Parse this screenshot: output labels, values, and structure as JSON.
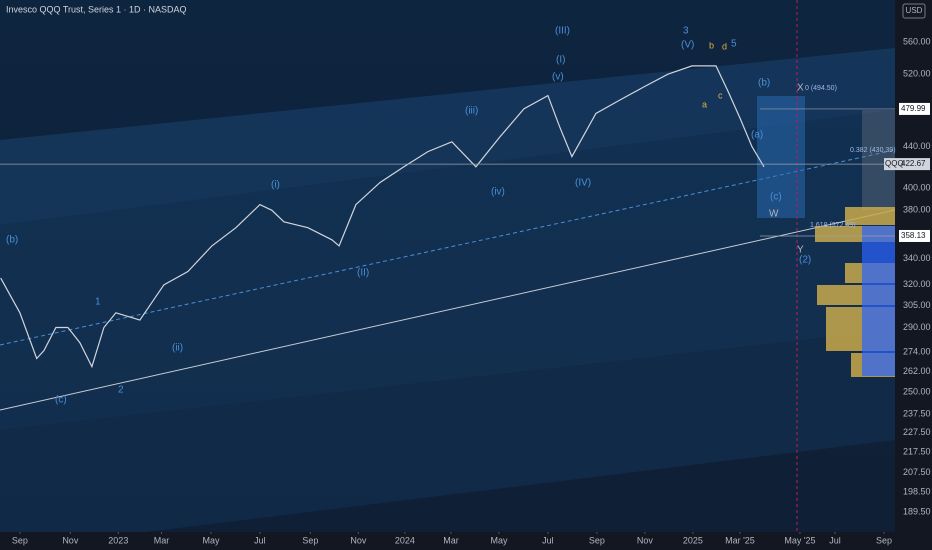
{
  "header": {
    "title": "Invesco QQQ Trust, Series 1 · 1D · NASDAQ",
    "currency": "USD"
  },
  "chart_data": {
    "type": "line",
    "log_scale": true,
    "grid": false,
    "series": [
      {
        "name": "QQQ",
        "color": "#d1d4dc",
        "x": [
          -0.8,
          0,
          0.7,
          1,
          1.5,
          2,
          2.5,
          3,
          3.5,
          4,
          5,
          6,
          7,
          8,
          9,
          10,
          10.5,
          11,
          12,
          13,
          13.3,
          14,
          15,
          16,
          17,
          18,
          19,
          20,
          21,
          22,
          22.5,
          23,
          24,
          25,
          26,
          27,
          28,
          29,
          29.5,
          30,
          30.5,
          31
        ],
        "values": [
          325,
          300,
          270,
          275,
          290,
          290,
          280,
          265,
          290,
          300,
          295,
          320,
          330,
          350,
          365,
          385,
          380,
          370,
          365,
          355,
          350,
          385,
          405,
          420,
          435,
          445,
          420,
          450,
          480,
          495,
          460,
          430,
          475,
          490,
          505,
          520,
          530,
          530,
          500,
          470,
          440,
          420
        ]
      }
    ],
    "xlim": [
      -0.83,
      36.46
    ],
    "ylim": [
      181,
      617
    ],
    "xticks": [
      {
        "value": 0,
        "label": "Sep"
      },
      {
        "value": 2.1,
        "label": "Nov"
      },
      {
        "value": 4.1,
        "label": "2023"
      },
      {
        "value": 5.9,
        "label": "Mar"
      },
      {
        "value": 7.96,
        "label": "May"
      },
      {
        "value": 10,
        "label": "Jul"
      },
      {
        "value": 12.1,
        "label": "Sep"
      },
      {
        "value": 14.1,
        "label": "Nov"
      },
      {
        "value": 16.04,
        "label": "2024"
      },
      {
        "value": 17.96,
        "label": "Mar"
      },
      {
        "value": 19.96,
        "label": "May"
      },
      {
        "value": 22,
        "label": "Jul"
      },
      {
        "value": 24.04,
        "label": "Sep"
      },
      {
        "value": 26.04,
        "label": "Nov"
      },
      {
        "value": 28.04,
        "label": "2025"
      },
      {
        "value": 30,
        "label": "Mar '25"
      },
      {
        "value": 32.5,
        "label": "May '25"
      },
      {
        "value": 33.96,
        "label": "Jul"
      },
      {
        "value": 36,
        "label": "Sep"
      }
    ],
    "yticks": [
      {
        "value": 560,
        "label": "560.00"
      },
      {
        "value": 520,
        "label": "520.00"
      },
      {
        "value": 440,
        "label": "440.00"
      },
      {
        "value": 400,
        "label": "400.00"
      },
      {
        "value": 380,
        "label": "380.00"
      },
      {
        "value": 340,
        "label": "340.00"
      },
      {
        "value": 320,
        "label": "320.00"
      },
      {
        "value": 305,
        "label": "305.00"
      },
      {
        "value": 290,
        "label": "290.00"
      },
      {
        "value": 274,
        "label": "274.00"
      },
      {
        "value": 262,
        "label": "262.00"
      },
      {
        "value": 250,
        "label": "250.00"
      },
      {
        "value": 237.5,
        "label": "237.50"
      },
      {
        "value": 227.5,
        "label": "227.50"
      },
      {
        "value": 217.5,
        "label": "217.50"
      },
      {
        "value": 207.5,
        "label": "207.50"
      },
      {
        "value": 198.5,
        "label": "198.50"
      },
      {
        "value": 189.5,
        "label": "189.50"
      }
    ],
    "price_lines": [
      {
        "name": "QQQ",
        "value": 422.67
      },
      {
        "value": 479.99
      },
      {
        "value": 358.13
      }
    ],
    "annotations": [
      "(b)",
      "1",
      "2",
      "(c)",
      "(i)",
      "(ii)",
      "(iii)",
      "(iv)",
      "(v)",
      "3",
      "5",
      "b",
      "d",
      "a",
      "c",
      "(b)",
      "(a)",
      "(c)",
      "X",
      "W",
      "Y",
      "(2)",
      "(I)",
      "(II)",
      "(III)",
      "(IV)",
      "(V)",
      "0 (494.50)",
      "0.382 (430.39)",
      "1.618 (372.49)"
    ]
  }
}
